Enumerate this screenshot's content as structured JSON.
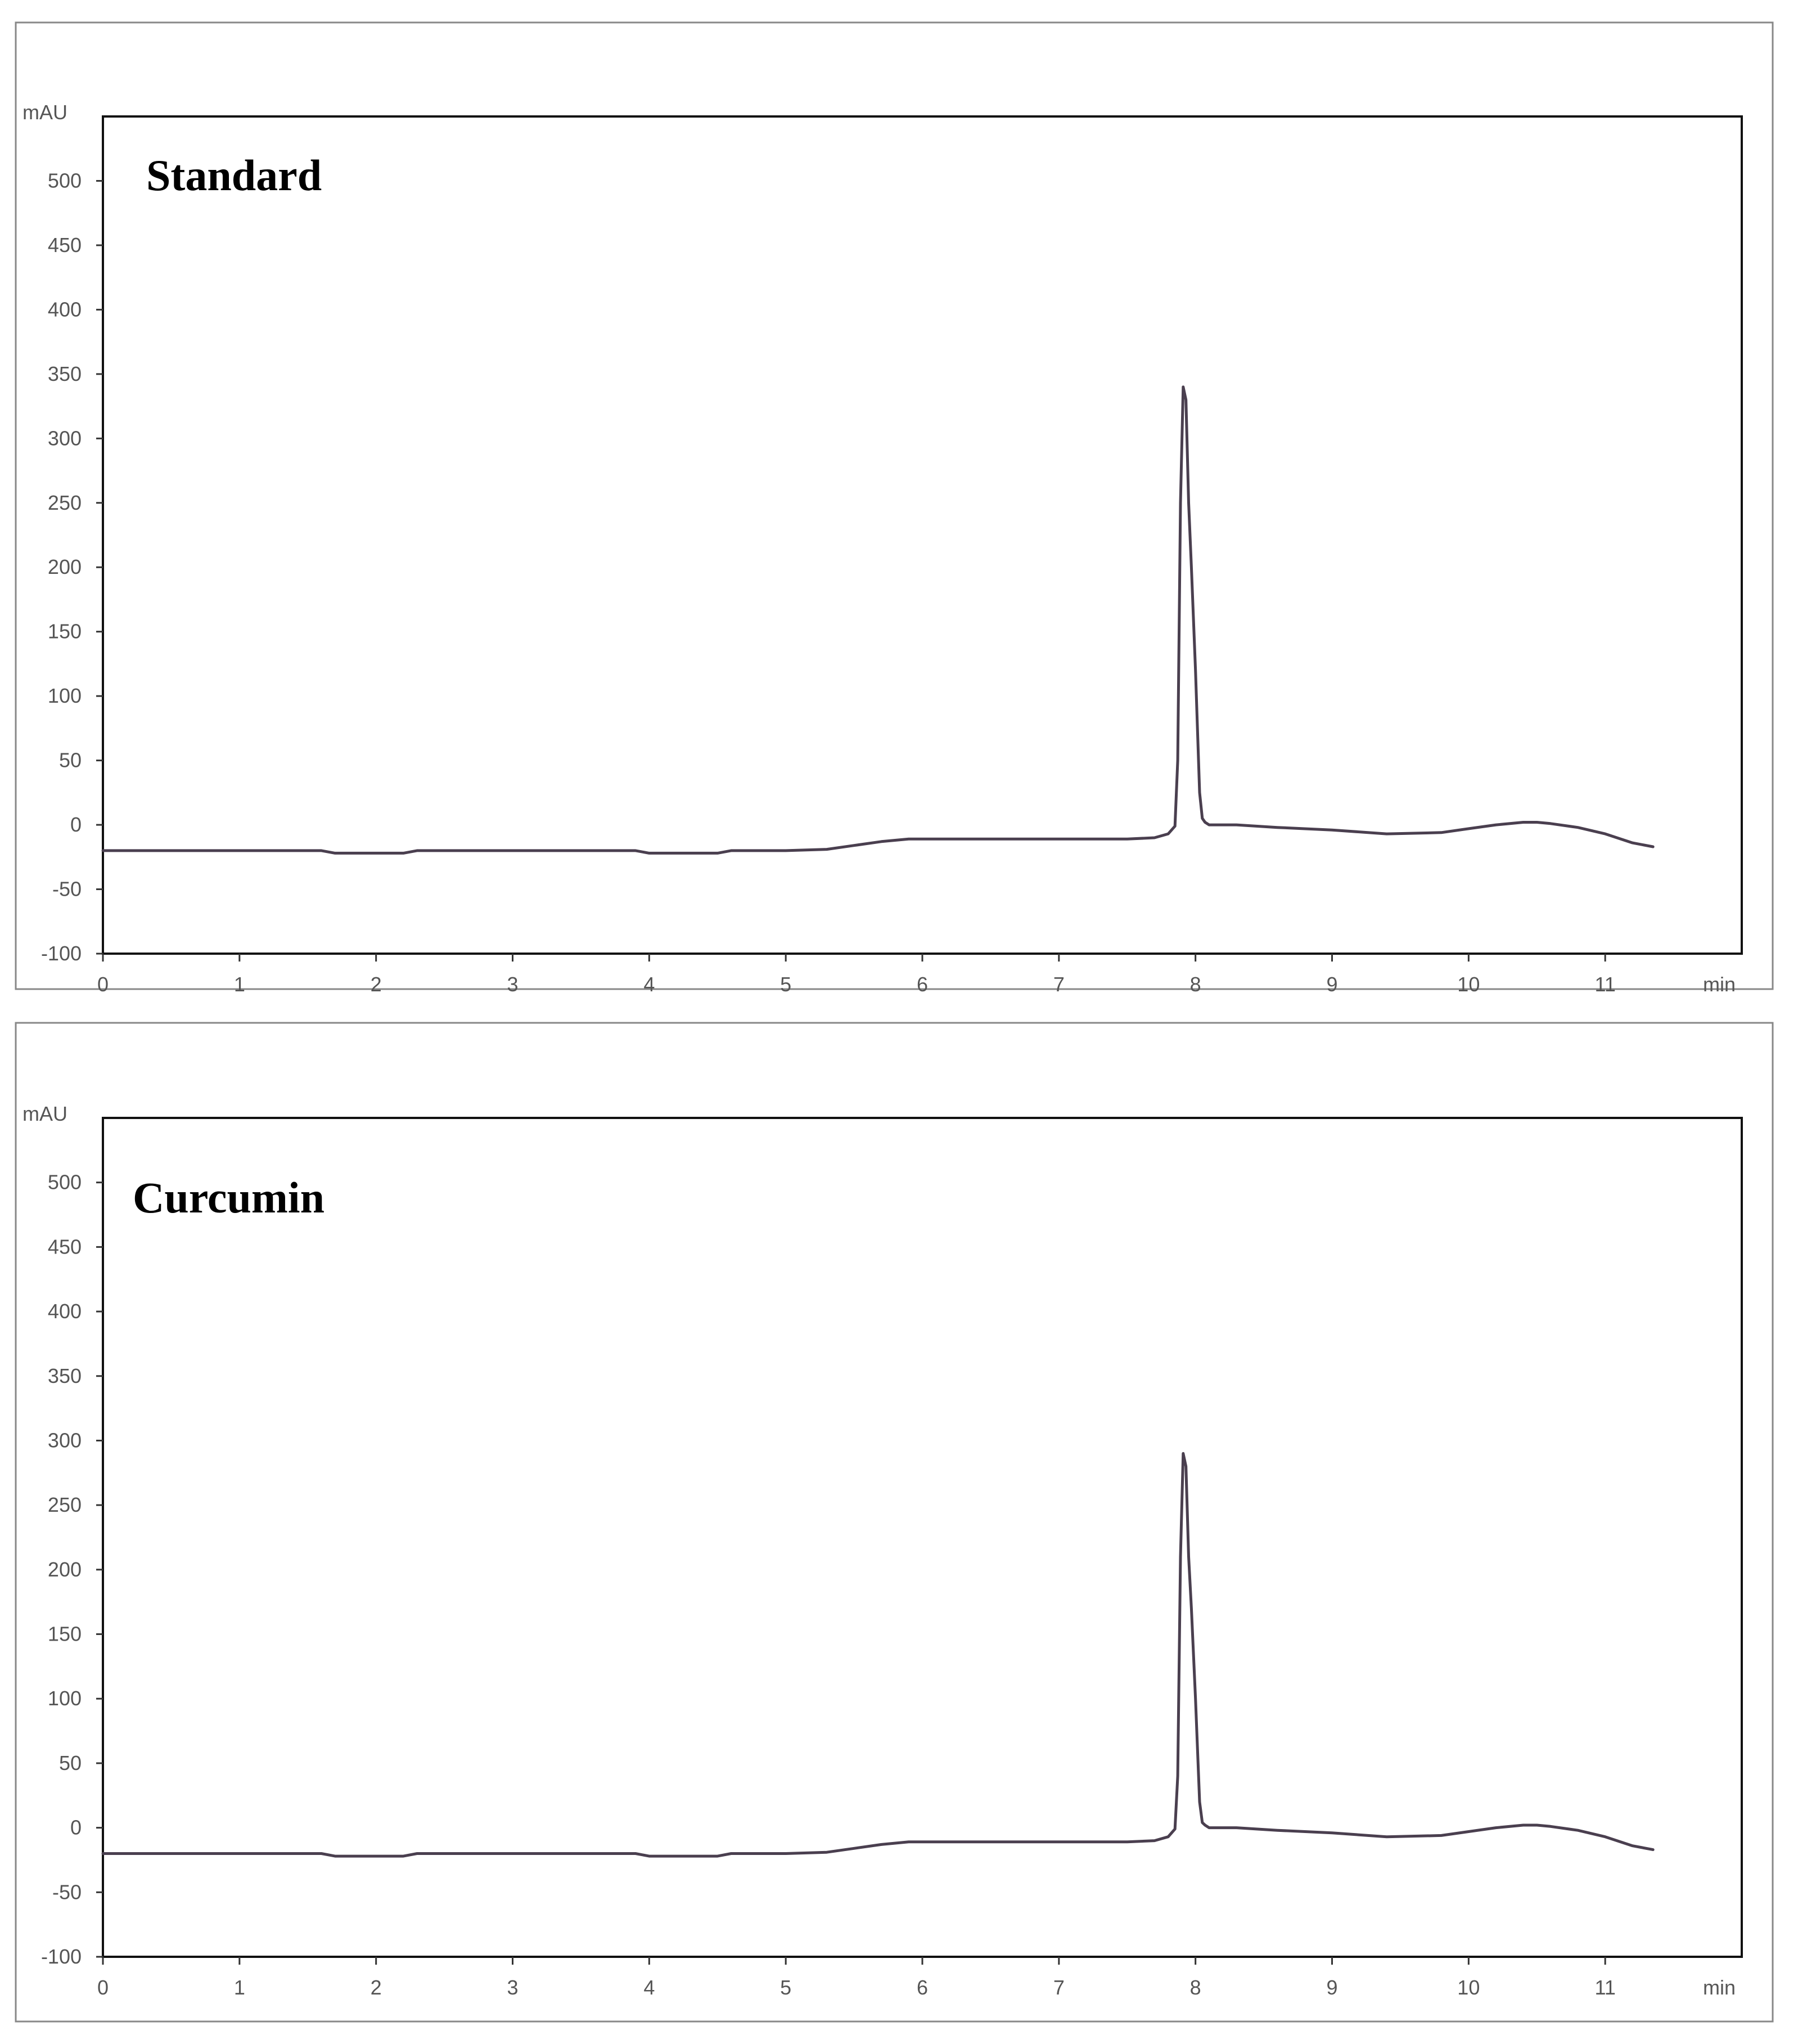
{
  "chart_data": [
    {
      "type": "line",
      "title": "Standard",
      "ylabel": "mAU",
      "xlabel": "min",
      "xlim": [
        0,
        12
      ],
      "ylim": [
        -100,
        550
      ],
      "x_ticks": [
        0,
        1,
        2,
        3,
        4,
        5,
        6,
        7,
        8,
        9,
        10,
        11
      ],
      "y_ticks": [
        -100,
        -50,
        0,
        50,
        100,
        150,
        200,
        250,
        300,
        350,
        400,
        450,
        500
      ],
      "grid": false,
      "line_color": "#4a3f4f",
      "series": [
        {
          "x": [
            0,
            0.5,
            1.0,
            1.6,
            1.7,
            2.2,
            2.3,
            3.0,
            3.9,
            4.0,
            4.5,
            4.6,
            5.0,
            5.3,
            5.5,
            5.7,
            5.9,
            6.0,
            6.5,
            7.0,
            7.5,
            7.7,
            7.8,
            7.85,
            7.87,
            7.89,
            7.91,
            7.93,
            7.95,
            7.97,
            8.0,
            8.03,
            8.05,
            8.07,
            8.1,
            8.3,
            8.6,
            9.0,
            9.4,
            9.8,
            10.0,
            10.2,
            10.4,
            10.5,
            10.6,
            10.8,
            11.0,
            11.2,
            11.35
          ],
          "y": [
            -20,
            -20,
            -20,
            -20,
            -22,
            -22,
            -20,
            -20,
            -20,
            -22,
            -22,
            -20,
            -20,
            -19,
            -16,
            -13,
            -11,
            -11,
            -11,
            -11,
            -11,
            -10,
            -7,
            -1,
            50,
            250,
            340,
            330,
            250,
            200,
            120,
            25,
            5,
            2,
            0,
            0,
            -2,
            -4,
            -7,
            -6,
            -3,
            0,
            2,
            2,
            1,
            -2,
            -7,
            -14,
            -17
          ]
        }
      ]
    },
    {
      "type": "line",
      "title": "Curcumin",
      "ylabel": "mAU",
      "xlabel": "min",
      "xlim": [
        0,
        12
      ],
      "ylim": [
        -100,
        550
      ],
      "x_ticks": [
        0,
        1,
        2,
        3,
        4,
        5,
        6,
        7,
        8,
        9,
        10,
        11
      ],
      "y_ticks": [
        -100,
        -50,
        0,
        50,
        100,
        150,
        200,
        250,
        300,
        350,
        400,
        450,
        500
      ],
      "grid": false,
      "line_color": "#4a3f4f",
      "series": [
        {
          "x": [
            0,
            0.5,
            1.0,
            1.6,
            1.7,
            2.2,
            2.3,
            3.0,
            3.9,
            4.0,
            4.5,
            4.6,
            5.0,
            5.3,
            5.5,
            5.7,
            5.9,
            6.0,
            6.5,
            7.0,
            7.5,
            7.7,
            7.8,
            7.85,
            7.87,
            7.89,
            7.91,
            7.93,
            7.95,
            7.97,
            8.0,
            8.03,
            8.05,
            8.07,
            8.1,
            8.3,
            8.6,
            9.0,
            9.4,
            9.8,
            10.0,
            10.2,
            10.4,
            10.5,
            10.6,
            10.8,
            11.0,
            11.2,
            11.35
          ],
          "y": [
            -20,
            -20,
            -20,
            -20,
            -22,
            -22,
            -20,
            -20,
            -20,
            -22,
            -22,
            -20,
            -20,
            -19,
            -16,
            -13,
            -11,
            -11,
            -11,
            -11,
            -11,
            -10,
            -7,
            -1,
            40,
            210,
            290,
            280,
            210,
            170,
            100,
            20,
            4,
            2,
            0,
            0,
            -2,
            -4,
            -7,
            -6,
            -3,
            0,
            2,
            2,
            1,
            -2,
            -7,
            -14,
            -17
          ]
        }
      ]
    }
  ]
}
